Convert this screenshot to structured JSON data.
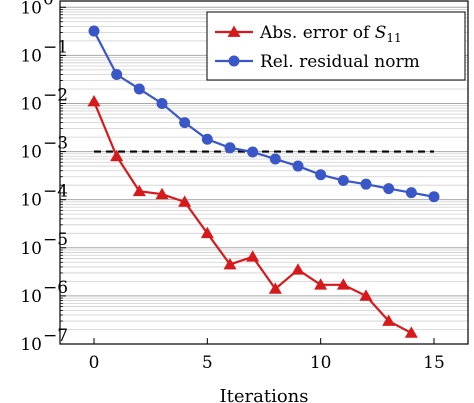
{
  "chart_data": {
    "type": "line",
    "xlabel": "Iterations",
    "ylabel": "",
    "yscale": "log",
    "xlim": [
      -1.5,
      16.5
    ],
    "ylim": [
      1e-07,
      1
    ],
    "x_ticks": [
      0,
      5,
      10,
      15
    ],
    "y_tick_exponents": [
      0,
      -1,
      -2,
      -3,
      -4,
      -5,
      -6,
      -7
    ],
    "grid": true,
    "legend_position": "top-right",
    "series": [
      {
        "name": "Abs. error of S11",
        "name_parts": {
          "main": "Abs. error of ",
          "var": "S",
          "sub": "11"
        },
        "color": "#d7191c",
        "marker": "triangle",
        "x": [
          0,
          1,
          2,
          3,
          4,
          5,
          6,
          7,
          8,
          9,
          10,
          11,
          12,
          13,
          14
        ],
        "y": [
          0.011,
          0.0008,
          0.00015,
          0.00013,
          9e-05,
          2e-05,
          4.5e-06,
          6.5e-06,
          1.4e-06,
          3.5e-06,
          1.7e-06,
          1.7e-06,
          1e-06,
          3e-07,
          1.7e-07
        ]
      },
      {
        "name": "Rel. residual norm",
        "color": "#3a57c7",
        "marker": "circle",
        "x": [
          0,
          1,
          2,
          3,
          4,
          5,
          6,
          7,
          8,
          9,
          10,
          11,
          12,
          13,
          14,
          15
        ],
        "y": [
          0.32,
          0.04,
          0.02,
          0.01,
          0.004,
          0.0018,
          0.0012,
          0.00098,
          0.0007,
          0.0005,
          0.00033,
          0.00025,
          0.00021,
          0.00017,
          0.00014,
          0.000115
        ]
      }
    ],
    "reference_line": {
      "y": 0.001,
      "x_range": [
        0,
        15
      ],
      "style": "dashed",
      "color": "#000000"
    }
  }
}
